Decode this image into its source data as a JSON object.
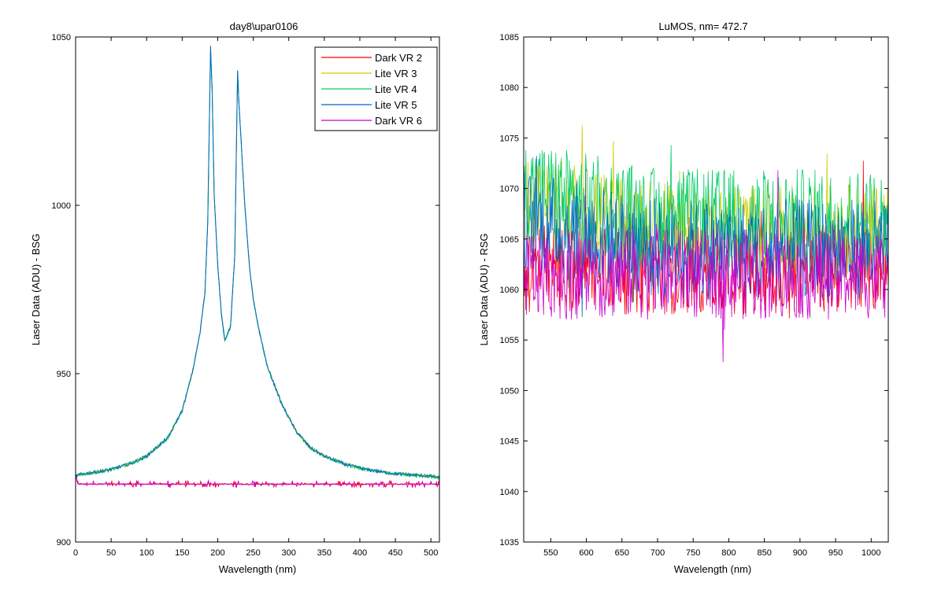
{
  "chart_data": [
    {
      "type": "line",
      "title": "day8\\upar0106",
      "xlabel": "Wavelength (nm)",
      "ylabel": "Laser Data (ADU) - BSG",
      "xlim": [
        0,
        512
      ],
      "ylim": [
        900,
        1050
      ],
      "xticks": [
        0,
        50,
        100,
        150,
        200,
        250,
        300,
        350,
        400,
        450,
        500
      ],
      "yticks": [
        900,
        950,
        1000,
        1050
      ],
      "legend_position": "top-right",
      "grid": false,
      "profile": {
        "x": [
          0,
          5,
          20,
          50,
          80,
          100,
          130,
          150,
          165,
          175,
          182,
          186,
          190,
          192,
          195,
          200,
          205,
          210,
          218,
          224,
          228,
          230,
          232,
          238,
          245,
          250,
          258,
          270,
          290,
          310,
          330,
          350,
          380,
          410,
          440,
          470,
          500,
          512
        ],
        "y": [
          919.5,
          920,
          920.5,
          921.5,
          923.5,
          925.5,
          931,
          939,
          951,
          962,
          974,
          995,
          1047,
          1035,
          1003,
          982,
          968,
          960,
          964,
          985,
          1040,
          1030,
          1023,
          1000,
          981,
          972,
          963,
          952,
          941,
          933,
          928,
          925.5,
          923,
          921.5,
          920.5,
          920,
          919.5,
          919
        ]
      },
      "series": [
        {
          "name": "Dark VR 2",
          "color": "#ff0000",
          "shape": "dark"
        },
        {
          "name": "Lite VR 3",
          "color": "#cccc00",
          "shape": "peak"
        },
        {
          "name": "Lite VR 4",
          "color": "#00cc66",
          "shape": "peak"
        },
        {
          "name": "Lite VR 5",
          "color": "#0066cc",
          "shape": "peak"
        },
        {
          "name": "Dark VR 6",
          "color": "#cc00cc",
          "shape": "dark"
        }
      ],
      "dark_level": 917.2
    },
    {
      "type": "line",
      "title": "LuMOS, nm= 472.7",
      "xlabel": "Wavelength (nm)",
      "ylabel": "Laser Data (ADU) - RSG",
      "xlim": [
        512,
        1024
      ],
      "ylim": [
        1035,
        1085
      ],
      "xticks": [
        550,
        600,
        650,
        700,
        750,
        800,
        850,
        900,
        950,
        1000
      ],
      "yticks": [
        1035,
        1040,
        1045,
        1050,
        1055,
        1060,
        1065,
        1070,
        1075,
        1080,
        1085
      ],
      "grid": false,
      "series": [
        {
          "color": "#ff0000",
          "baseline": 1062,
          "spread": 4.5
        },
        {
          "color": "#cccc00",
          "baseline": 1066,
          "spread": 4.5
        },
        {
          "color": "#00cc66",
          "baseline": 1067,
          "spread": 5
        },
        {
          "color": "#0066cc",
          "baseline": 1064,
          "spread": 5
        },
        {
          "color": "#cc00cc",
          "baseline": 1061.5,
          "spread": 4.5
        }
      ]
    }
  ]
}
